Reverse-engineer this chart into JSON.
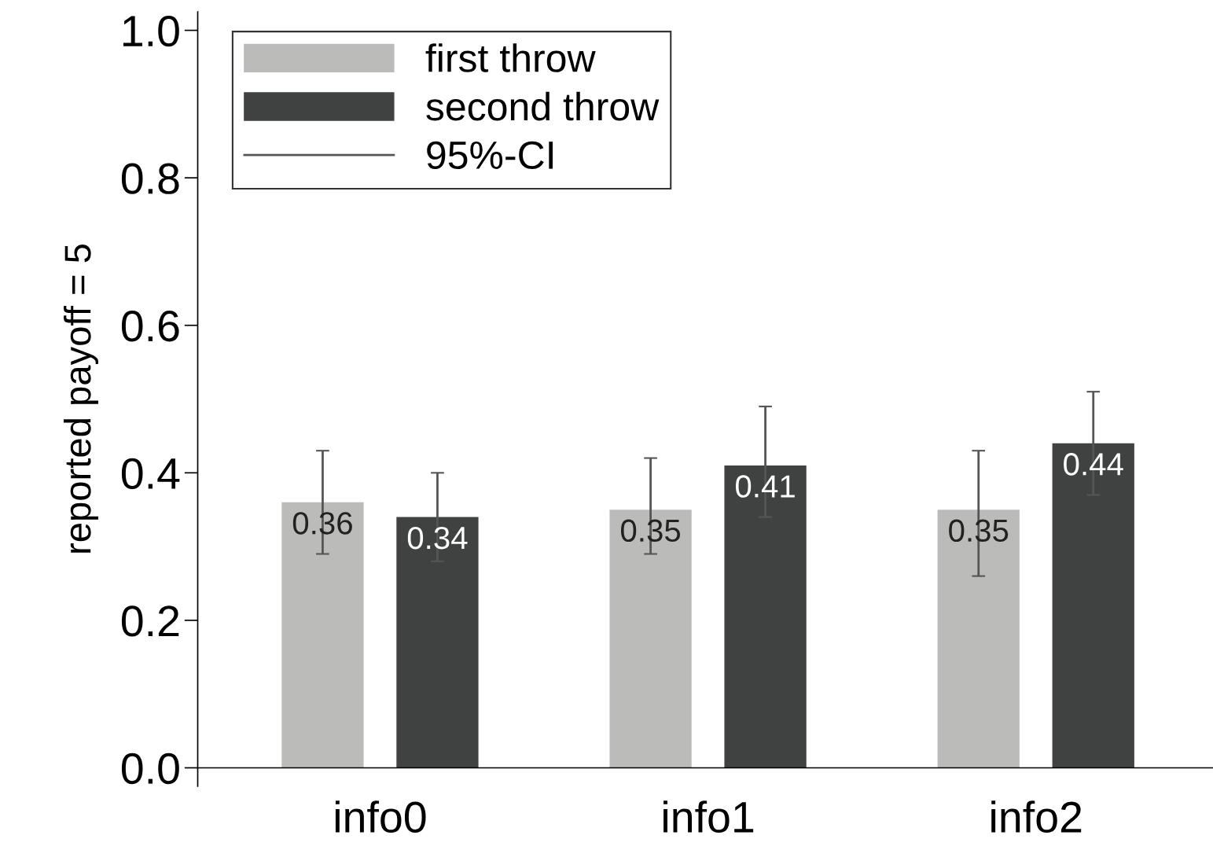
{
  "chart_data": {
    "type": "bar",
    "ylabel": "reported payoff = 5",
    "categories": [
      "info0",
      "info1",
      "info2"
    ],
    "series": [
      {
        "name": "first throw",
        "color": "#bbbbb9",
        "values": [
          0.36,
          0.35,
          0.35
        ],
        "errors": [
          [
            0.29,
            0.43
          ],
          [
            0.29,
            0.42
          ],
          [
            0.26,
            0.43
          ]
        ]
      },
      {
        "name": "second throw",
        "color": "#404241",
        "values": [
          0.34,
          0.41,
          0.44
        ],
        "errors": [
          [
            0.28,
            0.4
          ],
          [
            0.34,
            0.49
          ],
          [
            0.37,
            0.51
          ]
        ]
      }
    ],
    "annotations": [
      "95%-CI"
    ],
    "ylim": [
      -0.025,
      1.025
    ],
    "yticks": [
      {
        "value": 0,
        "label": "0.0"
      },
      0.2,
      0.4,
      0.6,
      0.8,
      {
        "value": 1,
        "label": "1.0"
      }
    ],
    "data_labels": true,
    "legend": "top left",
    "grid": false
  }
}
